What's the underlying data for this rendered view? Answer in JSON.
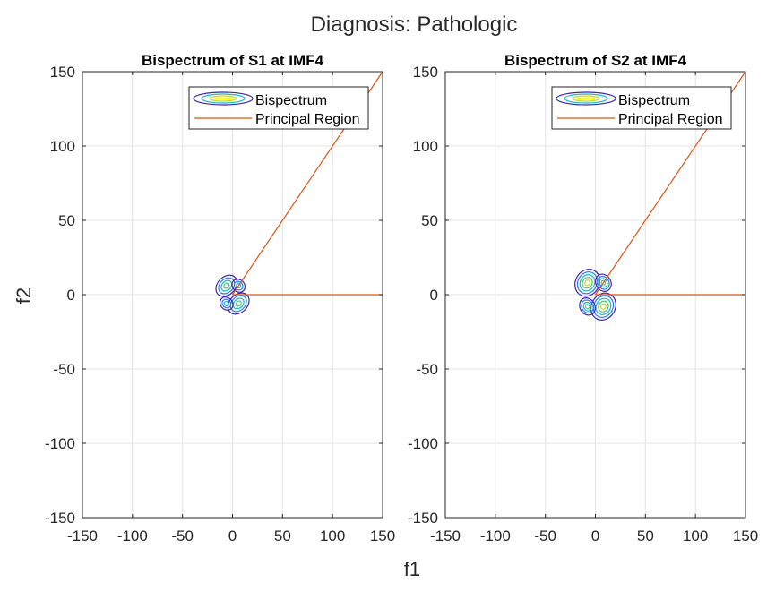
{
  "figure": {
    "title": "Diagnosis: Pathologic",
    "xlabel": "f1",
    "ylabel": "f2"
  },
  "colors": {
    "principal_region": "#d95319",
    "grid": "#e3e3e3",
    "axis": "#262626",
    "contour_levels": [
      "#3d26a8",
      "#2c7cf0",
      "#16b7c9",
      "#52c97a",
      "#c9d634",
      "#f9fb15"
    ]
  },
  "chart_data": [
    {
      "type": "contour",
      "title": "Bispectrum of S1 at IMF4",
      "xlim": [
        -150,
        150
      ],
      "ylim": [
        -150,
        150
      ],
      "xticks": [
        -150,
        -100,
        -50,
        0,
        50,
        100,
        150
      ],
      "yticks": [
        -150,
        -100,
        -50,
        0,
        50,
        100,
        150
      ],
      "grid": true,
      "legend": {
        "placement": "top-right",
        "entries": [
          "Bispectrum",
          "Principal Region"
        ]
      },
      "series": [
        {
          "name": "Bispectrum",
          "kind": "contour",
          "blobs": [
            {
              "cx": -6,
              "cy": 6,
              "rx": 12,
              "ry": 6,
              "rotation": 45,
              "levels": 4
            },
            {
              "cx": 6,
              "cy": -6,
              "rx": 12,
              "ry": 6,
              "rotation": 45,
              "levels": 4
            },
            {
              "cx": -6,
              "cy": -6,
              "rx": 7,
              "ry": 4,
              "rotation": -45,
              "levels": 3
            },
            {
              "cx": 6,
              "cy": 6,
              "rx": 7,
              "ry": 4,
              "rotation": -45,
              "levels": 3
            }
          ]
        },
        {
          "name": "Principal Region",
          "kind": "line",
          "segments": [
            {
              "x": [
                0,
                150
              ],
              "y": [
                0,
                0
              ]
            },
            {
              "x": [
                0,
                150
              ],
              "y": [
                0,
                150
              ]
            }
          ]
        }
      ]
    },
    {
      "type": "contour",
      "title": "Bispectrum of S2 at IMF4",
      "xlim": [
        -150,
        150
      ],
      "ylim": [
        -150,
        150
      ],
      "xticks": [
        -150,
        -100,
        -50,
        0,
        50,
        100,
        150
      ],
      "yticks": [
        -150,
        -100,
        -50,
        0,
        50,
        100,
        150
      ],
      "grid": true,
      "legend": {
        "placement": "top-right",
        "entries": [
          "Bispectrum",
          "Principal Region"
        ]
      },
      "series": [
        {
          "name": "Bispectrum",
          "kind": "contour",
          "blobs": [
            {
              "cx": -8,
              "cy": 8,
              "rx": 14,
              "ry": 8,
              "rotation": 60,
              "levels": 5
            },
            {
              "cx": 8,
              "cy": -8,
              "rx": 14,
              "ry": 8,
              "rotation": 60,
              "levels": 5
            },
            {
              "cx": -8,
              "cy": -8,
              "rx": 9,
              "ry": 5,
              "rotation": -60,
              "levels": 4
            },
            {
              "cx": 8,
              "cy": 8,
              "rx": 9,
              "ry": 5,
              "rotation": -60,
              "levels": 4
            }
          ]
        },
        {
          "name": "Principal Region",
          "kind": "line",
          "segments": [
            {
              "x": [
                0,
                150
              ],
              "y": [
                0,
                0
              ]
            },
            {
              "x": [
                0,
                150
              ],
              "y": [
                0,
                150
              ]
            }
          ]
        }
      ]
    }
  ]
}
